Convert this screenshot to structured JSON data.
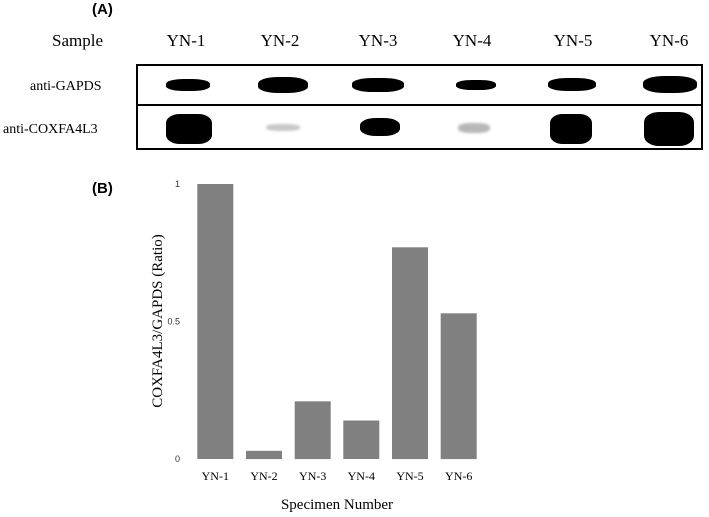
{
  "panel_a": {
    "letter": "(A)",
    "sample_label": "Sample",
    "lanes": [
      "YN-1",
      "YN-2",
      "YN-3",
      "YN-4",
      "YN-5",
      "YN-6"
    ],
    "row_gapds": "anti-GAPDS",
    "row_coxfa": "anti-COXFA4L3"
  },
  "panel_b": {
    "letter": "(B)"
  },
  "chart_data": {
    "type": "bar",
    "categories": [
      "YN-1",
      "YN-2",
      "YN-3",
      "YN-4",
      "YN-5",
      "YN-6"
    ],
    "values": [
      1.0,
      0.03,
      0.21,
      0.14,
      0.77,
      0.53
    ],
    "title": "",
    "xlabel": "Specimen Number",
    "ylabel": "COXFA4L3/GAPDS (Ratio)",
    "ylim": [
      0,
      1
    ],
    "yticks": [
      "0",
      "0.5",
      "1"
    ],
    "bar_color": "#808080",
    "grid": false
  }
}
